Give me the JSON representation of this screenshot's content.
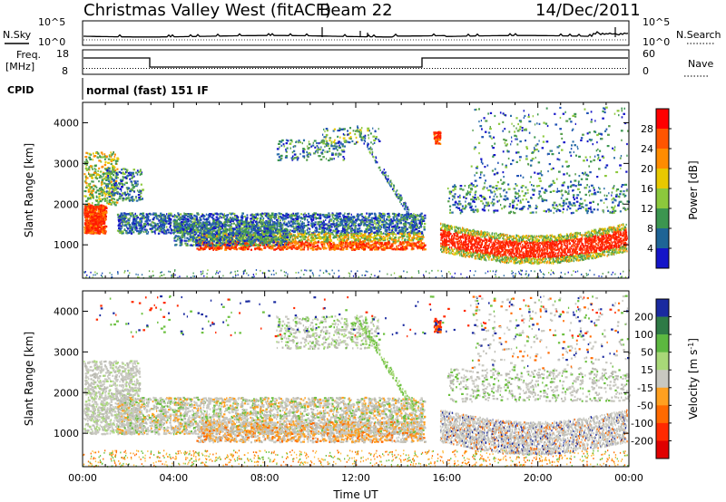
{
  "header": {
    "title": "Christmas Valley West (fitACF)",
    "beam": "Beam 22",
    "date": "14/Dec/2011"
  },
  "noise_panel": {
    "left_label": "N.Sky",
    "right_label": "N.Search",
    "ticks_left": [
      "10^5",
      "10^0"
    ],
    "ticks_right": [
      "10^5",
      "10^0"
    ]
  },
  "freq_panel": {
    "left_label": "Freq.",
    "left_unit": "[MHz]",
    "right_label": "Nave",
    "ticks_left": [
      "18",
      "8"
    ],
    "ticks_right": [
      "60",
      "0"
    ]
  },
  "cpid": {
    "label": "CPID",
    "text": "normal (fast) 151 IF"
  },
  "chart_data": [
    {
      "type": "heatmap",
      "name": "Power",
      "ylabel": "Slant Range [km]",
      "ylim": [
        180,
        4500
      ],
      "y_ticks": [
        "1000",
        "2000",
        "3000",
        "4000"
      ],
      "x_ticks": [
        "00:00",
        "04:00",
        "08:00",
        "12:00",
        "16:00",
        "20:00",
        "00:00"
      ],
      "colorbar": {
        "label": "Power [dB]",
        "ticks": [
          "28",
          "24",
          "20",
          "16",
          "12",
          "8",
          "4"
        ],
        "colors": [
          "#ff0000",
          "#ff5500",
          "#ff8c00",
          "#e8c800",
          "#8cc83c",
          "#3c9650",
          "#1e6496",
          "#1414c8"
        ]
      }
    },
    {
      "type": "heatmap",
      "name": "Velocity",
      "ylabel": "Slant Range [km]",
      "xlabel": "Time UT",
      "ylim": [
        180,
        4500
      ],
      "y_ticks": [
        "1000",
        "2000",
        "3000",
        "4000"
      ],
      "x_ticks": [
        "00:00",
        "04:00",
        "08:00",
        "12:00",
        "16:00",
        "20:00",
        "00:00"
      ],
      "colorbar": {
        "label": "Velocity [m s",
        "label_sup": "-1",
        "label_end": "]",
        "ticks": [
          "200",
          "100",
          "50",
          "15",
          "-15",
          "-50",
          "-100",
          "-200"
        ],
        "colors": [
          "#1a2aa0",
          "#2e7a46",
          "#5cb840",
          "#a8d878",
          "#c8c8c0",
          "#ffa020",
          "#ff6a00",
          "#ff2a00",
          "#e00000"
        ]
      }
    }
  ],
  "colors": {
    "power_red": "#ff1a00",
    "power_orange": "#ff8c00",
    "power_yellow": "#e8c800",
    "power_green": "#3c9650",
    "power_blue": "#1e50b4",
    "vel_gray": "#c8c8c0",
    "vel_green": "#6cc040",
    "vel_orange": "#ffa020"
  }
}
